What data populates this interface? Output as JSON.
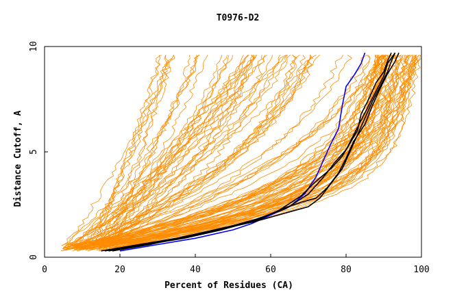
{
  "chart_data": {
    "type": "line",
    "title": "T0976-D2",
    "xlabel": "Percent of Residues (CA)",
    "ylabel": "Distance Cutoff, A",
    "xlim": [
      0,
      100
    ],
    "ylim": [
      0,
      10
    ],
    "x_ticks": [
      0,
      20,
      40,
      60,
      80,
      100
    ],
    "y_ticks": [
      0,
      5,
      10
    ],
    "grid": false,
    "legend": "none",
    "colors": {
      "background_models": "#ff8c00",
      "highlight_black": "#000000",
      "highlight_blue": "#0000ff"
    },
    "background_model_count": 110,
    "series": [
      {
        "color": "blue",
        "x": [
          20,
          30,
          40,
          50,
          55,
          60,
          65,
          69,
          72,
          74,
          76,
          78,
          79,
          80,
          82,
          84,
          85
        ],
        "y": [
          0.3,
          0.6,
          0.9,
          1.3,
          1.6,
          2.0,
          2.4,
          3.0,
          3.8,
          4.6,
          5.4,
          6.1,
          7.2,
          8.1,
          8.6,
          9.2,
          9.7
        ]
      },
      {
        "color": "black",
        "x": [
          15,
          25,
          35,
          45,
          55,
          62,
          68,
          72,
          76,
          79,
          81,
          83,
          84,
          86,
          88,
          90,
          91,
          92
        ],
        "y": [
          0.3,
          0.6,
          0.9,
          1.3,
          1.7,
          2.2,
          2.9,
          3.6,
          4.2,
          4.8,
          5.4,
          6.0,
          6.8,
          7.5,
          8.3,
          8.8,
          9.3,
          9.7
        ]
      },
      {
        "color": "black",
        "x": [
          18,
          28,
          38,
          48,
          56,
          64,
          70,
          74,
          77,
          80,
          82,
          84,
          86,
          88,
          90,
          91,
          93
        ],
        "y": [
          0.3,
          0.6,
          1.0,
          1.4,
          1.8,
          2.3,
          3.0,
          3.8,
          4.5,
          5.1,
          5.8,
          6.5,
          7.2,
          7.9,
          8.6,
          9.2,
          9.7
        ]
      },
      {
        "color": "black",
        "x": [
          16,
          26,
          36,
          46,
          56,
          62,
          66,
          70,
          73,
          76,
          79,
          81,
          83,
          85,
          87,
          89,
          91,
          92,
          93
        ],
        "y": [
          0.3,
          0.6,
          0.9,
          1.3,
          1.7,
          2.0,
          2.2,
          2.4,
          2.8,
          3.5,
          4.2,
          5.0,
          5.8,
          6.6,
          7.4,
          8.1,
          8.8,
          9.3,
          9.7
        ]
      },
      {
        "color": "black",
        "x": [
          17,
          27,
          37,
          47,
          57,
          63,
          68,
          72,
          75,
          78,
          80,
          82,
          85,
          87,
          89,
          91,
          93,
          94
        ],
        "y": [
          0.3,
          0.6,
          0.9,
          1.3,
          1.8,
          2.3,
          2.6,
          2.8,
          3.3,
          4.0,
          4.7,
          5.5,
          6.3,
          7.2,
          8.0,
          8.7,
          9.3,
          9.7
        ]
      }
    ]
  }
}
